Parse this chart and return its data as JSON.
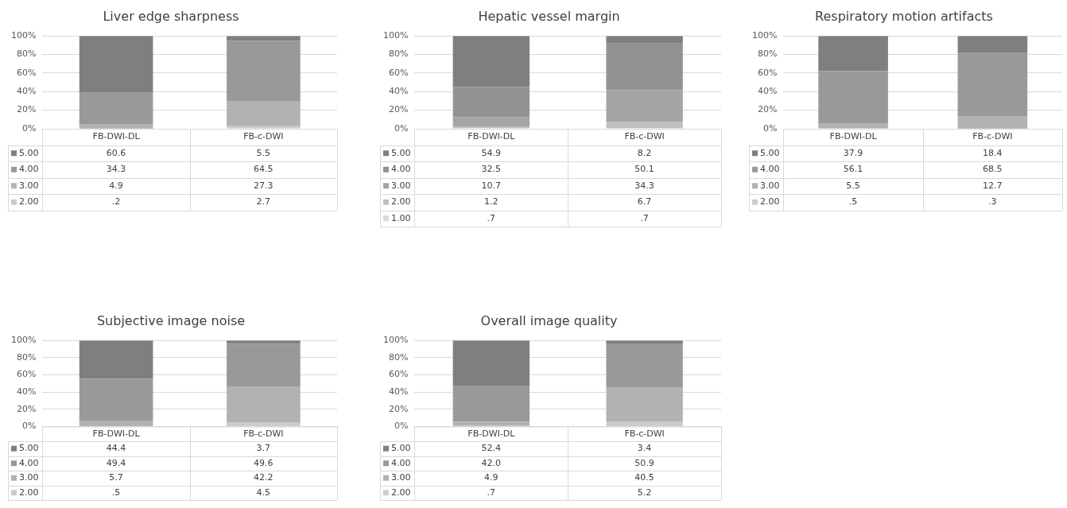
{
  "chart_data": [
    {
      "type": "bar",
      "title": "Liver edge sharpness",
      "categories": [
        "FB-DWI-DL",
        "FB-c-DWI"
      ],
      "stacked": true,
      "ylim": [
        0,
        100
      ],
      "yticks": [
        {
          "value": 0,
          "label": "0%"
        },
        {
          "value": 20,
          "label": "20%"
        },
        {
          "value": 40,
          "label": "40%"
        },
        {
          "value": 60,
          "label": "60%"
        },
        {
          "value": 80,
          "label": "80%"
        },
        {
          "value": 100,
          "label": "100%"
        }
      ],
      "grid": "y",
      "legend": "bottom",
      "series": [
        {
          "name": "2.00",
          "color": "#cccccc",
          "values": [
            0.2,
            2.7
          ],
          "value_labels": [
            ".2",
            "2.7"
          ]
        },
        {
          "name": "3.00",
          "color": "#b2b2b2",
          "values": [
            4.9,
            27.3
          ],
          "value_labels": [
            "4.9",
            "27.3"
          ]
        },
        {
          "name": "4.00",
          "color": "#999999",
          "values": [
            34.3,
            64.5
          ],
          "value_labels": [
            "34.3",
            "64.5"
          ]
        },
        {
          "name": "5.00",
          "color": "#7f7f7f",
          "values": [
            60.6,
            5.5
          ],
          "value_labels": [
            "60.6",
            "5.5"
          ]
        }
      ]
    },
    {
      "type": "bar",
      "title": "Hepatic vessel margin",
      "categories": [
        "FB-DWI-DL",
        "FB-c-DWI"
      ],
      "stacked": true,
      "ylim": [
        0,
        100
      ],
      "yticks": [
        {
          "value": 0,
          "label": "0%"
        },
        {
          "value": 20,
          "label": "20%"
        },
        {
          "value": 40,
          "label": "40%"
        },
        {
          "value": 60,
          "label": "60%"
        },
        {
          "value": 80,
          "label": "80%"
        },
        {
          "value": 100,
          "label": "100%"
        }
      ],
      "grid": "y",
      "legend": "bottom",
      "series": [
        {
          "name": "1.00",
          "color": "#d9d9d9",
          "values": [
            0.7,
            0.7
          ],
          "value_labels": [
            ".7",
            ".7"
          ]
        },
        {
          "name": "2.00",
          "color": "#bfbfbf",
          "values": [
            1.2,
            6.7
          ],
          "value_labels": [
            "1.2",
            "6.7"
          ]
        },
        {
          "name": "3.00",
          "color": "#a5a5a5",
          "values": [
            10.7,
            34.3
          ],
          "value_labels": [
            "10.7",
            "34.3"
          ]
        },
        {
          "name": "4.00",
          "color": "#929292",
          "values": [
            32.5,
            50.1
          ],
          "value_labels": [
            "32.5",
            "50.1"
          ]
        },
        {
          "name": "5.00",
          "color": "#7f7f7f",
          "values": [
            54.9,
            8.2
          ],
          "value_labels": [
            "54.9",
            "8.2"
          ]
        }
      ]
    },
    {
      "type": "bar",
      "title": "Respiratory motion artifacts",
      "categories": [
        "FB-DWI-DL",
        "FB-c-DWI"
      ],
      "stacked": true,
      "ylim": [
        0,
        100
      ],
      "yticks": [
        {
          "value": 0,
          "label": "0%"
        },
        {
          "value": 20,
          "label": "20%"
        },
        {
          "value": 40,
          "label": "40%"
        },
        {
          "value": 60,
          "label": "60%"
        },
        {
          "value": 80,
          "label": "80%"
        },
        {
          "value": 100,
          "label": "100%"
        }
      ],
      "grid": "y",
      "legend": "bottom",
      "series": [
        {
          "name": "2.00",
          "color": "#cccccc",
          "values": [
            0.5,
            0.3
          ],
          "value_labels": [
            ".5",
            ".3"
          ]
        },
        {
          "name": "3.00",
          "color": "#b2b2b2",
          "values": [
            5.5,
            12.7
          ],
          "value_labels": [
            "5.5",
            "12.7"
          ]
        },
        {
          "name": "4.00",
          "color": "#999999",
          "values": [
            56.1,
            68.5
          ],
          "value_labels": [
            "56.1",
            "68.5"
          ]
        },
        {
          "name": "5.00",
          "color": "#7f7f7f",
          "values": [
            37.9,
            18.4
          ],
          "value_labels": [
            "37.9",
            "18.4"
          ]
        }
      ]
    },
    {
      "type": "bar",
      "title": "Subjective image noise",
      "categories": [
        "FB-DWI-DL",
        "FB-c-DWI"
      ],
      "stacked": true,
      "ylim": [
        0,
        100
      ],
      "yticks": [
        {
          "value": 0,
          "label": "0%"
        },
        {
          "value": 20,
          "label": "20%"
        },
        {
          "value": 40,
          "label": "40%"
        },
        {
          "value": 60,
          "label": "60%"
        },
        {
          "value": 80,
          "label": "80%"
        },
        {
          "value": 100,
          "label": "100%"
        }
      ],
      "grid": "y",
      "legend": "bottom",
      "series": [
        {
          "name": "2.00",
          "color": "#cccccc",
          "values": [
            0.5,
            4.5
          ],
          "value_labels": [
            ".5",
            "4.5"
          ]
        },
        {
          "name": "3.00",
          "color": "#b2b2b2",
          "values": [
            5.7,
            42.2
          ],
          "value_labels": [
            "5.7",
            "42.2"
          ]
        },
        {
          "name": "4.00",
          "color": "#999999",
          "values": [
            49.4,
            49.6
          ],
          "value_labels": [
            "49.4",
            "49.6"
          ]
        },
        {
          "name": "5.00",
          "color": "#7f7f7f",
          "values": [
            44.4,
            3.7
          ],
          "value_labels": [
            "44.4",
            "3.7"
          ]
        }
      ]
    },
    {
      "type": "bar",
      "title": "Overall image quality",
      "categories": [
        "FB-DWI-DL",
        "FB-c-DWI"
      ],
      "stacked": true,
      "ylim": [
        0,
        100
      ],
      "yticks": [
        {
          "value": 0,
          "label": "0%"
        },
        {
          "value": 20,
          "label": "20%"
        },
        {
          "value": 40,
          "label": "40%"
        },
        {
          "value": 60,
          "label": "60%"
        },
        {
          "value": 80,
          "label": "80%"
        },
        {
          "value": 100,
          "label": "100%"
        }
      ],
      "grid": "y",
      "legend": "bottom",
      "series": [
        {
          "name": "2.00",
          "color": "#cccccc",
          "values": [
            0.7,
            5.2
          ],
          "value_labels": [
            ".7",
            "5.2"
          ]
        },
        {
          "name": "3.00",
          "color": "#b2b2b2",
          "values": [
            4.9,
            40.5
          ],
          "value_labels": [
            "4.9",
            "40.5"
          ]
        },
        {
          "name": "4.00",
          "color": "#999999",
          "values": [
            42.0,
            50.9
          ],
          "value_labels": [
            "42.0",
            "50.9"
          ]
        },
        {
          "name": "5.00",
          "color": "#7f7f7f",
          "values": [
            52.4,
            3.4
          ],
          "value_labels": [
            "52.4",
            "3.4"
          ]
        }
      ]
    }
  ]
}
